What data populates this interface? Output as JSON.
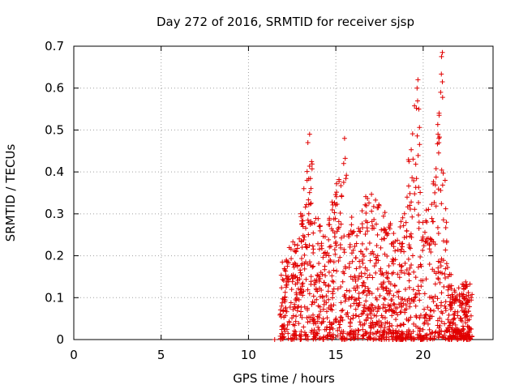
{
  "chart_data": {
    "type": "scatter",
    "title": "Day 272 of 2016, SRMTID for receiver sjsp",
    "xlabel": "GPS time / hours",
    "ylabel": "SRMTID / TECUs",
    "xlim": [
      0,
      24
    ],
    "ylim": [
      0,
      0.7
    ],
    "xticks": [
      0,
      5,
      10,
      15,
      20
    ],
    "yticks": [
      0,
      0.1,
      0.2,
      0.3,
      0.4,
      0.5,
      0.6,
      0.7
    ],
    "xtick_labels": [
      "0",
      "5",
      "10",
      "15",
      "20"
    ],
    "ytick_labels": [
      "0",
      "0.1",
      "0.2",
      "0.3",
      "0.4",
      "0.5",
      "0.6",
      "0.7"
    ],
    "grid": true,
    "marker": "+",
    "point_color": "#e00000",
    "series": [
      {
        "name": "sjsp",
        "x_range": [
          11.5,
          22.8
        ],
        "note": "dense scatter of several hundred points, values mostly 0-0.3 TECU, bursts near 13.5 h (~0.49), 15.5 h (~0.48), 19.7 h (~0.62), 21.1 h (~0.69)",
        "envelope": [
          [
            11.5,
            0.0
          ],
          [
            11.8,
            0.2
          ],
          [
            12.3,
            0.22
          ],
          [
            12.8,
            0.28
          ],
          [
            13.2,
            0.38
          ],
          [
            13.5,
            0.49
          ],
          [
            13.9,
            0.3
          ],
          [
            14.4,
            0.26
          ],
          [
            15.0,
            0.37
          ],
          [
            15.5,
            0.48
          ],
          [
            16.0,
            0.27
          ],
          [
            16.5,
            0.33
          ],
          [
            17.0,
            0.36
          ],
          [
            17.5,
            0.32
          ],
          [
            18.0,
            0.3
          ],
          [
            18.5,
            0.25
          ],
          [
            19.0,
            0.35
          ],
          [
            19.5,
            0.6
          ],
          [
            19.7,
            0.62
          ],
          [
            20.0,
            0.28
          ],
          [
            20.4,
            0.35
          ],
          [
            20.8,
            0.5
          ],
          [
            21.1,
            0.69
          ],
          [
            21.4,
            0.18
          ],
          [
            21.8,
            0.13
          ],
          [
            22.3,
            0.14
          ],
          [
            22.8,
            0.14
          ]
        ]
      }
    ]
  }
}
